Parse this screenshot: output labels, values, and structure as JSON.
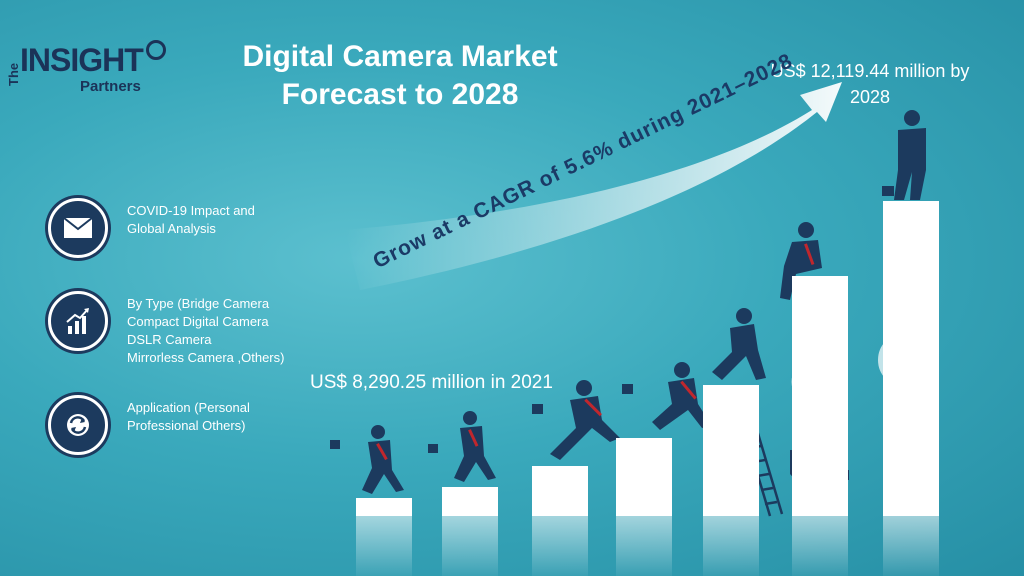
{
  "logo": {
    "prefix": "The",
    "word": "INSIGHT",
    "suffix": "Partners"
  },
  "title": {
    "line1": "Digital Camera Market",
    "line2": "Forecast to 2028"
  },
  "value_2028": {
    "line1": "US$ 12,119.44 million by",
    "line2": "2028"
  },
  "value_2021": "US$ 8,290.25 million in 2021",
  "cagr_text": "Grow at a CAGR of 5.6% during 2021–2028",
  "features": [
    {
      "icon": "envelope-icon",
      "lines": [
        "COVID-19 Impact and",
        "Global Analysis"
      ]
    },
    {
      "icon": "growth-chart-icon",
      "lines": [
        "By Type (Bridge Camera",
        "Compact Digital Camera",
        "DSLR Camera",
        "Mirrorless Camera ,Others)"
      ]
    },
    {
      "icon": "cycle-arrows-icon",
      "lines": [
        "Application (Personal",
        "Professional Others)"
      ]
    }
  ],
  "colors": {
    "navy": "#1c3a5e",
    "accent_red": "#c0272d",
    "background": "#3aa9bc",
    "steps": "#ffffff"
  }
}
